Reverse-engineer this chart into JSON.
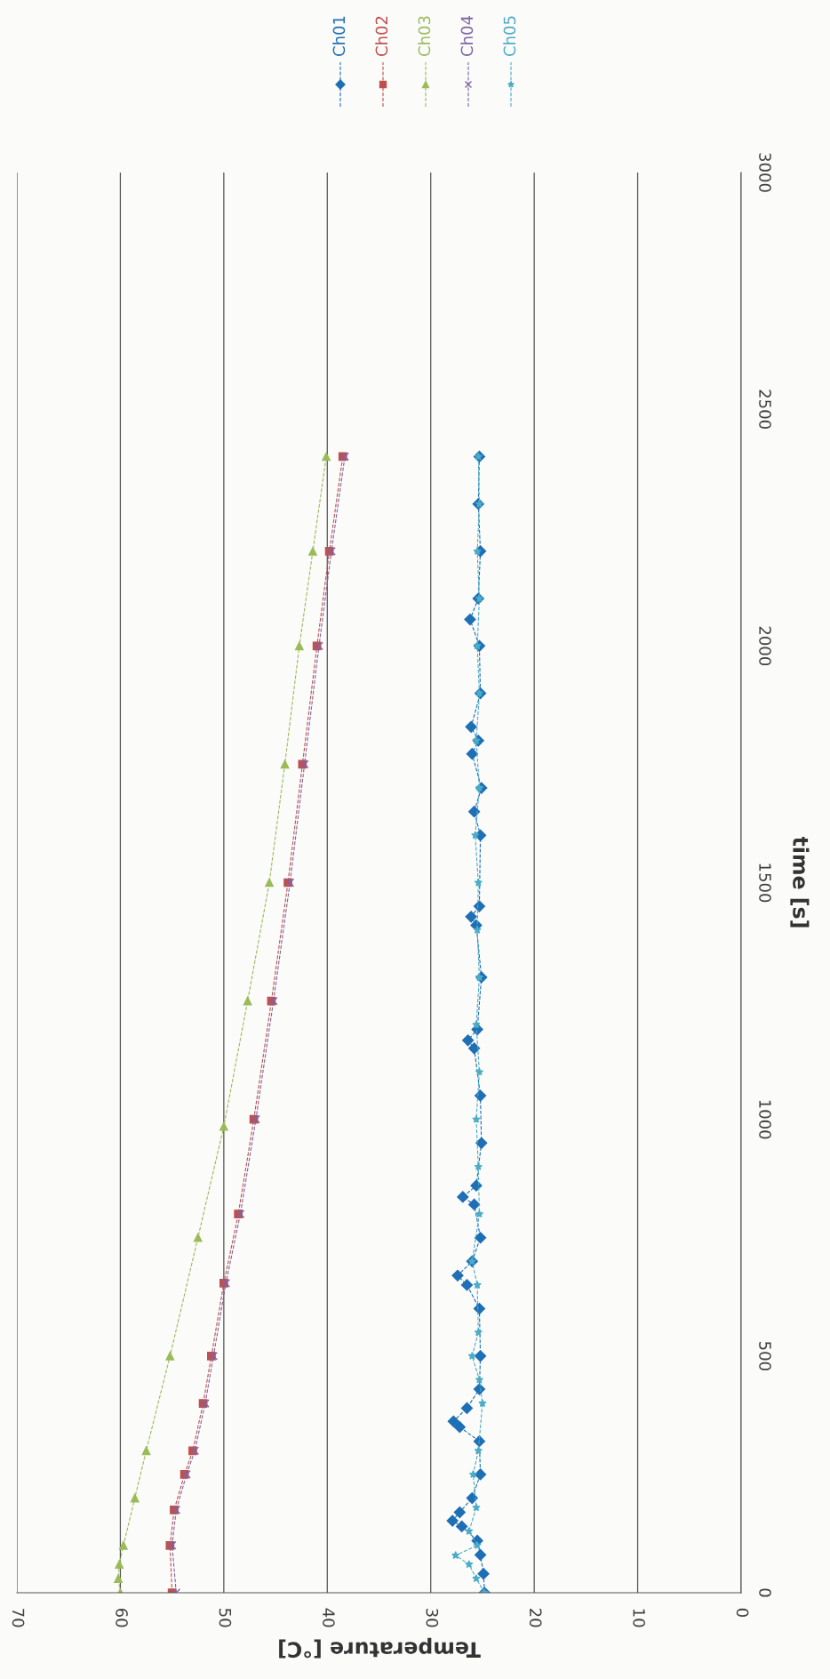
{
  "chart_data": {
    "type": "line",
    "xlabel": "Temperature [°C]",
    "ylabel": "time [s]",
    "xlim": [
      70,
      0
    ],
    "xticks": [
      70,
      60,
      50,
      40,
      30,
      20,
      10,
      0
    ],
    "ylim": [
      0,
      3000
    ],
    "yticks": [
      0,
      500,
      1000,
      1500,
      2000,
      2500,
      3000
    ],
    "grid": "x",
    "legend": "top",
    "line_style": "dashed",
    "series": [
      {
        "name": "Ch01",
        "color": "#1f6fb5",
        "marker": "diamond",
        "values": [
          0,
          40,
          80,
          110,
          140,
          152,
          170,
          200,
          250,
          320,
          350,
          362,
          390,
          430,
          500,
          600,
          650,
          670,
          700,
          750,
          820,
          836,
          860,
          950,
          1050,
          1150,
          1167,
          1190,
          1300,
          1410,
          1428,
          1450,
          1600,
          1650,
          1700,
          1772,
          1800,
          1829,
          1900,
          2000,
          2056,
          2100,
          2200,
          2300,
          2400
        ],
        "x": [
          24.8,
          24.9,
          25.2,
          25.5,
          27.0,
          27.9,
          27.2,
          26.0,
          25.2,
          25.3,
          27.2,
          27.8,
          26.5,
          25.3,
          25.2,
          25.3,
          26.5,
          27.4,
          26.0,
          25.2,
          25.8,
          26.9,
          25.6,
          25.1,
          25.2,
          25.8,
          26.4,
          25.5,
          25.1,
          25.6,
          26.1,
          25.3,
          25.2,
          25.8,
          25.1,
          26.0,
          25.4,
          26.1,
          25.2,
          25.3,
          26.2,
          25.4,
          25.2,
          25.4,
          25.3
        ]
      },
      {
        "name": "Ch02",
        "color": "#c0504d",
        "marker": "square",
        "values": [
          0,
          100,
          175,
          250,
          300,
          400,
          500,
          654,
          800,
          1000,
          1250,
          1500,
          1750,
          2000,
          2200,
          2400
        ],
        "x": [
          55.0,
          55.2,
          54.8,
          53.8,
          53.0,
          52.0,
          51.2,
          50.0,
          48.6,
          47.1,
          45.4,
          43.8,
          42.4,
          41.0,
          39.8,
          38.5
        ]
      },
      {
        "name": "Ch03",
        "color": "#9bbb59",
        "marker": "triangle",
        "values": [
          0,
          30,
          60,
          100,
          200,
          300,
          500,
          750,
          985,
          1250,
          1500,
          1750,
          2000,
          2200,
          2400
        ],
        "x": [
          60.0,
          60.2,
          60.1,
          59.7,
          58.6,
          57.5,
          55.2,
          52.5,
          50.0,
          47.7,
          45.6,
          44.1,
          42.7,
          41.4,
          40.1
        ]
      },
      {
        "name": "Ch04",
        "color": "#8064a2",
        "marker": "cross",
        "values": [
          0,
          100,
          175,
          250,
          300,
          400,
          500,
          654,
          800,
          1000,
          1250,
          1500,
          1750,
          2000,
          2200,
          2400
        ],
        "x": [
          54.6,
          55.0,
          54.6,
          53.6,
          52.8,
          51.8,
          51.0,
          49.8,
          48.4,
          46.9,
          45.2,
          43.6,
          42.2,
          40.8,
          39.6,
          38.3
        ]
      },
      {
        "name": "Ch05",
        "color": "#4bacc6",
        "marker": "star",
        "values": [
          0,
          30,
          60,
          79,
          100,
          130,
          180,
          250,
          300,
          400,
          450,
          500,
          550,
          650,
          700,
          800,
          900,
          1000,
          1100,
          1200,
          1300,
          1400,
          1500,
          1600,
          1700,
          1800,
          1900,
          2000,
          2100,
          2200,
          2300,
          2400
        ],
        "x": [
          24.8,
          25.6,
          26.3,
          27.6,
          25.5,
          26.3,
          25.6,
          25.9,
          25.4,
          25.0,
          25.3,
          26.0,
          25.4,
          25.5,
          26.0,
          25.3,
          25.4,
          25.6,
          25.3,
          25.6,
          25.3,
          25.5,
          25.4,
          25.7,
          25.3,
          25.6,
          25.3,
          25.5,
          25.3,
          25.5,
          25.3,
          25.4
        ]
      }
    ]
  }
}
